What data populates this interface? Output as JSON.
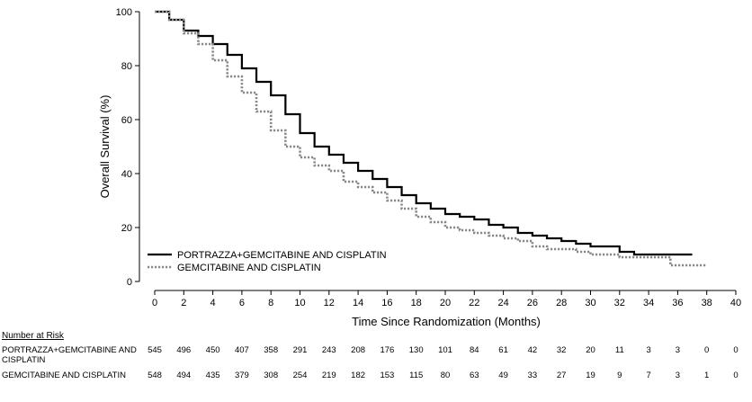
{
  "chart_data": {
    "type": "line",
    "title": "",
    "xlabel": "Time Since Randomization (Months)",
    "ylabel": "Overall Survival (%)",
    "xlim": [
      0,
      40
    ],
    "ylim": [
      0,
      100
    ],
    "xticks": [
      0,
      2,
      4,
      6,
      8,
      10,
      12,
      14,
      16,
      18,
      20,
      22,
      24,
      26,
      28,
      30,
      32,
      34,
      36,
      38,
      40
    ],
    "yticks": [
      0,
      20,
      40,
      60,
      80,
      100
    ],
    "grid": false,
    "legend_position": "bottom-left",
    "series": [
      {
        "name": "PORTRAZZA+GEMCITABINE AND CISPLATIN",
        "style": "solid",
        "color": "#000000",
        "x": [
          0,
          1,
          2,
          3,
          4,
          5,
          6,
          7,
          8,
          9,
          10,
          11,
          12,
          13,
          14,
          15,
          16,
          17,
          18,
          19,
          20,
          21,
          22,
          23,
          24,
          25,
          26,
          27,
          28,
          29,
          30,
          31,
          32,
          33,
          34,
          35,
          36,
          37
        ],
        "y": [
          100,
          97,
          93,
          91,
          88,
          84,
          79,
          74,
          69,
          62,
          55,
          50,
          47,
          44,
          41,
          38,
          35,
          32,
          29,
          27,
          25,
          24,
          23,
          21,
          20,
          18,
          17,
          16,
          15,
          14,
          13,
          13,
          11,
          10,
          10,
          10,
          10,
          10
        ]
      },
      {
        "name": "GEMCITABINE AND CISPLATIN",
        "style": "dotted",
        "color": "#888888",
        "x": [
          0,
          1,
          2,
          3,
          4,
          5,
          6,
          7,
          8,
          9,
          10,
          11,
          12,
          13,
          14,
          15,
          16,
          17,
          18,
          19,
          20,
          21,
          22,
          23,
          24,
          25,
          26,
          27,
          28,
          29,
          30,
          31,
          32,
          33,
          34,
          35,
          35.5,
          36,
          37,
          38
        ],
        "y": [
          100,
          97,
          92,
          88,
          82,
          76,
          70,
          63,
          56,
          50,
          46,
          43,
          41,
          37,
          35,
          33,
          30,
          27,
          24,
          22,
          20,
          19,
          18,
          17,
          16,
          15,
          13,
          12,
          12,
          11,
          10,
          10,
          9,
          9,
          9,
          9,
          6,
          6,
          6,
          6
        ]
      }
    ],
    "number_at_risk": {
      "title": "Number at Risk",
      "months": [
        0,
        2,
        4,
        6,
        8,
        10,
        12,
        14,
        16,
        18,
        20,
        22,
        24,
        26,
        28,
        30,
        32,
        34,
        36,
        38,
        40
      ],
      "rows": [
        {
          "label": "PORTRAZZA+GEMCITABINE AND CISPLATIN",
          "values": [
            545,
            496,
            450,
            407,
            358,
            291,
            243,
            208,
            176,
            130,
            101,
            84,
            61,
            42,
            32,
            20,
            11,
            3,
            3,
            0,
            0
          ]
        },
        {
          "label": "GEMCITABINE AND CISPLATIN",
          "values": [
            548,
            494,
            435,
            379,
            308,
            254,
            219,
            182,
            153,
            115,
            80,
            63,
            49,
            33,
            27,
            19,
            9,
            7,
            3,
            1,
            0
          ]
        }
      ]
    }
  }
}
